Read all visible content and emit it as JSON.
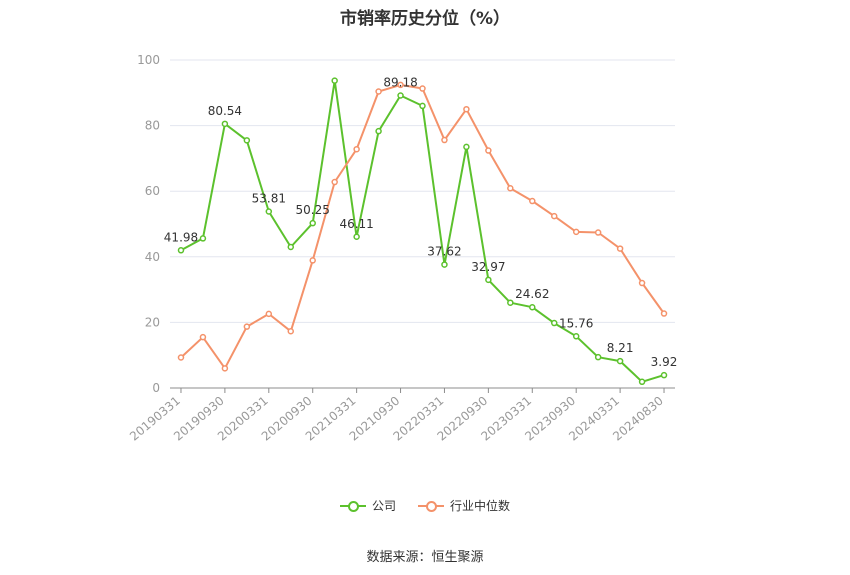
{
  "chart_data": {
    "type": "line",
    "title": "市销率历史分位（%）",
    "categories": [
      "20190331",
      "20190630",
      "20190930",
      "20191231",
      "20200331",
      "20200630",
      "20200930",
      "20201231",
      "20210331",
      "20210630",
      "20210930",
      "20211231",
      "20220331",
      "20220630",
      "20220930",
      "20221231",
      "20230331",
      "20230630",
      "20230930",
      "20231231",
      "20240331",
      "20240630",
      "20240830"
    ],
    "shown_tick_labels": [
      "20190331",
      "20190930",
      "20200331",
      "20200930",
      "20210331",
      "20210930",
      "20220331",
      "20220930",
      "20230331",
      "20230930",
      "20240331",
      "20240830"
    ],
    "ylim": [
      0,
      100
    ],
    "yticks": [
      0,
      20,
      40,
      60,
      80,
      100
    ],
    "grid": true,
    "legend_position": "bottom",
    "series": [
      {
        "name": "公司",
        "color": "#5cc12d",
        "values": [
          41.98,
          45.6,
          80.54,
          75.5,
          53.81,
          43.0,
          50.25,
          93.7,
          46.11,
          78.3,
          89.18,
          86.0,
          37.62,
          73.5,
          32.97,
          26.0,
          24.62,
          19.8,
          15.76,
          9.4,
          8.21,
          1.9,
          3.92
        ],
        "labels": {
          "0": "41.98",
          "2": "80.54",
          "4": "53.81",
          "6": "50.25",
          "8": "46.11",
          "10": "89.18",
          "12": "37.62",
          "14": "32.97",
          "16": "24.62",
          "18": "15.76",
          "20": "8.21",
          "22": "3.92"
        }
      },
      {
        "name": "行业中位数",
        "color": "#f4926a",
        "values": [
          9.3,
          15.5,
          6.0,
          18.7,
          22.6,
          17.3,
          38.9,
          62.8,
          72.8,
          90.4,
          92.4,
          91.3,
          75.6,
          85.0,
          72.4,
          60.9,
          57.0,
          52.4,
          47.6,
          47.4,
          42.5,
          32.0,
          22.7
        ]
      }
    ]
  },
  "legend": [
    {
      "label": "公司",
      "color": "#5cc12d"
    },
    {
      "label": "行业中位数",
      "color": "#f4926a"
    }
  ],
  "source": "数据来源：恒生聚源"
}
